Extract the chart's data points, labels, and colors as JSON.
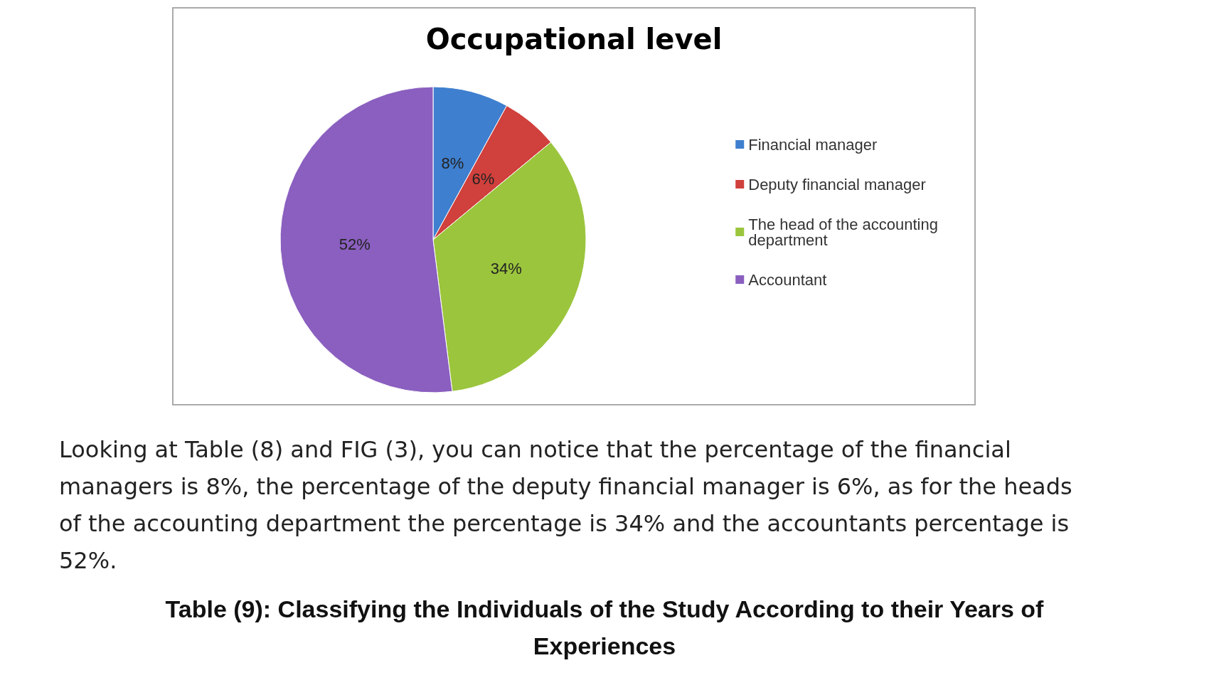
{
  "chart_data": {
    "type": "pie",
    "title": "Occupational level",
    "categories": [
      "Financial manager",
      "Deputy financial manager",
      "The head of the accounting department",
      "Accountant"
    ],
    "values": [
      8,
      6,
      34,
      52
    ],
    "colors": [
      "#3f7fcf",
      "#d0403c",
      "#9bc53d",
      "#8a5fbf"
    ],
    "value_labels": [
      "8%",
      "6%",
      "34%",
      "52%"
    ],
    "legend": "right",
    "annotations": [
      "Looking at Table (8) and FIG (3), you can notice that the percentage of the financial managers is 8%, the percentage of the deputy financial manager is 6%, as for the heads of the accounting department the percentage is 34% and the accountants percentage is 52%.",
      "Table (9): Classifying the Individuals of the Study According to their Years of Experiences"
    ]
  }
}
